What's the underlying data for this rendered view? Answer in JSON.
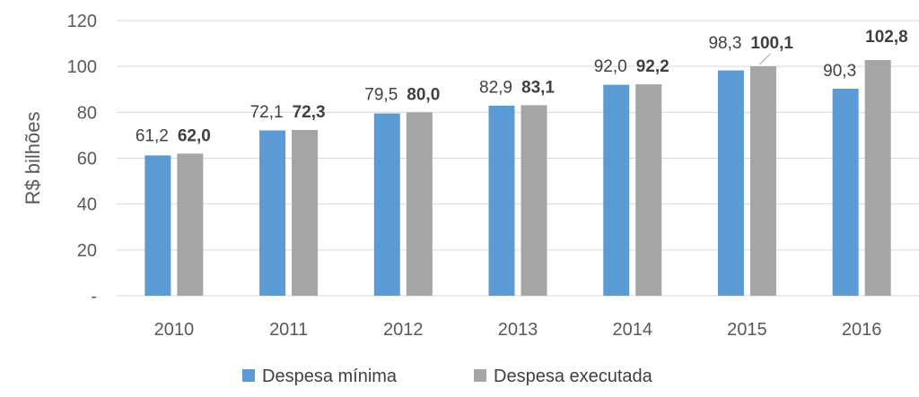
{
  "chart_data": {
    "type": "bar",
    "ylabel": "R$ bilhões",
    "ylim": [
      0,
      120
    ],
    "yticks": [
      {
        "value": 0,
        "label": "-"
      },
      {
        "value": 20,
        "label": "20"
      },
      {
        "value": 40,
        "label": "40"
      },
      {
        "value": 60,
        "label": "60"
      },
      {
        "value": 80,
        "label": "80"
      },
      {
        "value": 100,
        "label": "100"
      },
      {
        "value": 120,
        "label": "120"
      }
    ],
    "grid": true,
    "legend_position": "bottom",
    "categories": [
      "2010",
      "2011",
      "2012",
      "2013",
      "2014",
      "2015",
      "2016"
    ],
    "series": [
      {
        "name": "Despesa mínima",
        "color": "#5b9bd5",
        "values": [
          61.2,
          72.1,
          79.5,
          82.9,
          92.0,
          98.3,
          90.3
        ],
        "labels": [
          "61,2",
          "72,1",
          "79,5",
          "82,9",
          "92,0",
          "98,3",
          "90,3"
        ],
        "label_bold": false
      },
      {
        "name": "Despesa executada",
        "color": "#a5a5a5",
        "values": [
          62.0,
          72.3,
          80.0,
          83.1,
          92.2,
          100.1,
          102.8
        ],
        "labels": [
          "62,0",
          "72,3",
          "80,0",
          "83,1",
          "92,2",
          "100,1",
          "102,8"
        ],
        "label_bold": true
      }
    ]
  }
}
